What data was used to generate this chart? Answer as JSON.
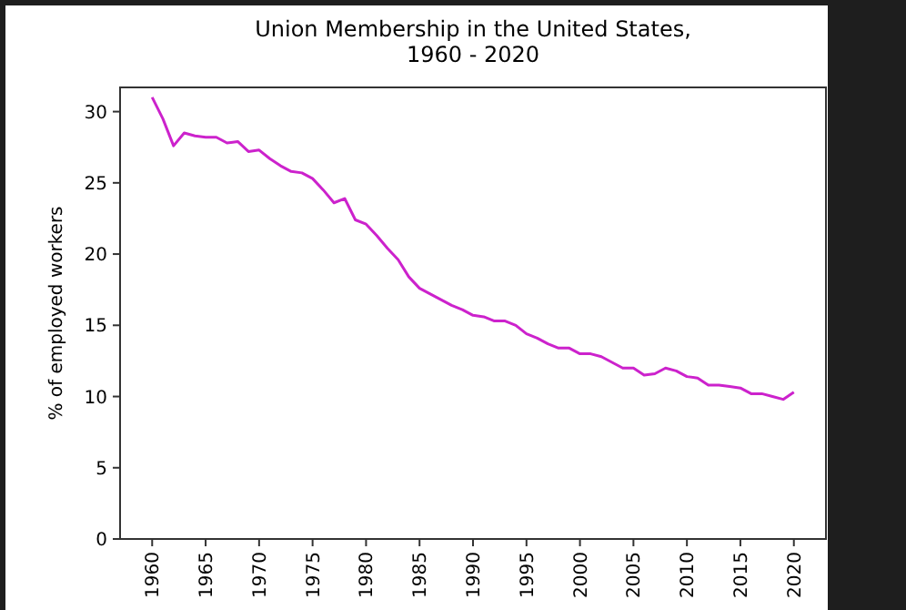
{
  "chart_data": {
    "type": "line",
    "title": "Union Membership in the United States,\n1960 - 2020",
    "ylabel": "% of employed workers",
    "x": [
      1960,
      1961,
      1962,
      1963,
      1964,
      1965,
      1966,
      1967,
      1968,
      1969,
      1970,
      1971,
      1972,
      1973,
      1974,
      1975,
      1976,
      1977,
      1978,
      1979,
      1980,
      1981,
      1982,
      1983,
      1984,
      1985,
      1986,
      1987,
      1988,
      1989,
      1990,
      1991,
      1992,
      1993,
      1994,
      1995,
      1996,
      1997,
      1998,
      1999,
      2000,
      2001,
      2002,
      2003,
      2004,
      2005,
      2006,
      2007,
      2008,
      2009,
      2010,
      2011,
      2012,
      2013,
      2014,
      2015,
      2016,
      2017,
      2018,
      2019,
      2020
    ],
    "series": [
      {
        "color": "#cc22cc",
        "values": [
          31.0,
          29.5,
          27.6,
          28.5,
          28.3,
          28.2,
          28.2,
          27.8,
          27.9,
          27.2,
          27.3,
          26.7,
          26.2,
          25.8,
          25.7,
          25.3,
          24.5,
          23.6,
          23.9,
          22.4,
          22.1,
          21.3,
          20.4,
          19.6,
          18.4,
          17.6,
          17.2,
          16.8,
          16.4,
          16.1,
          15.7,
          15.6,
          15.3,
          15.3,
          15.0,
          14.4,
          14.1,
          13.7,
          13.4,
          13.4,
          13.0,
          13.0,
          12.8,
          12.4,
          12.0,
          12.0,
          11.5,
          11.6,
          12.0,
          11.8,
          11.4,
          11.3,
          10.8,
          10.8,
          10.7,
          10.6,
          10.2,
          10.2,
          10.0,
          9.8,
          10.3
        ]
      }
    ],
    "xlim": [
      1957,
      2023
    ],
    "xticks": [
      1960,
      1965,
      1970,
      1975,
      1980,
      1985,
      1990,
      1995,
      2000,
      2005,
      2010,
      2015,
      2020
    ],
    "ylim": [
      0,
      31.7
    ],
    "yticks": [
      0,
      5,
      10,
      15,
      20,
      25,
      30
    ],
    "grid": false,
    "marker": "none",
    "line_style": "solid"
  }
}
